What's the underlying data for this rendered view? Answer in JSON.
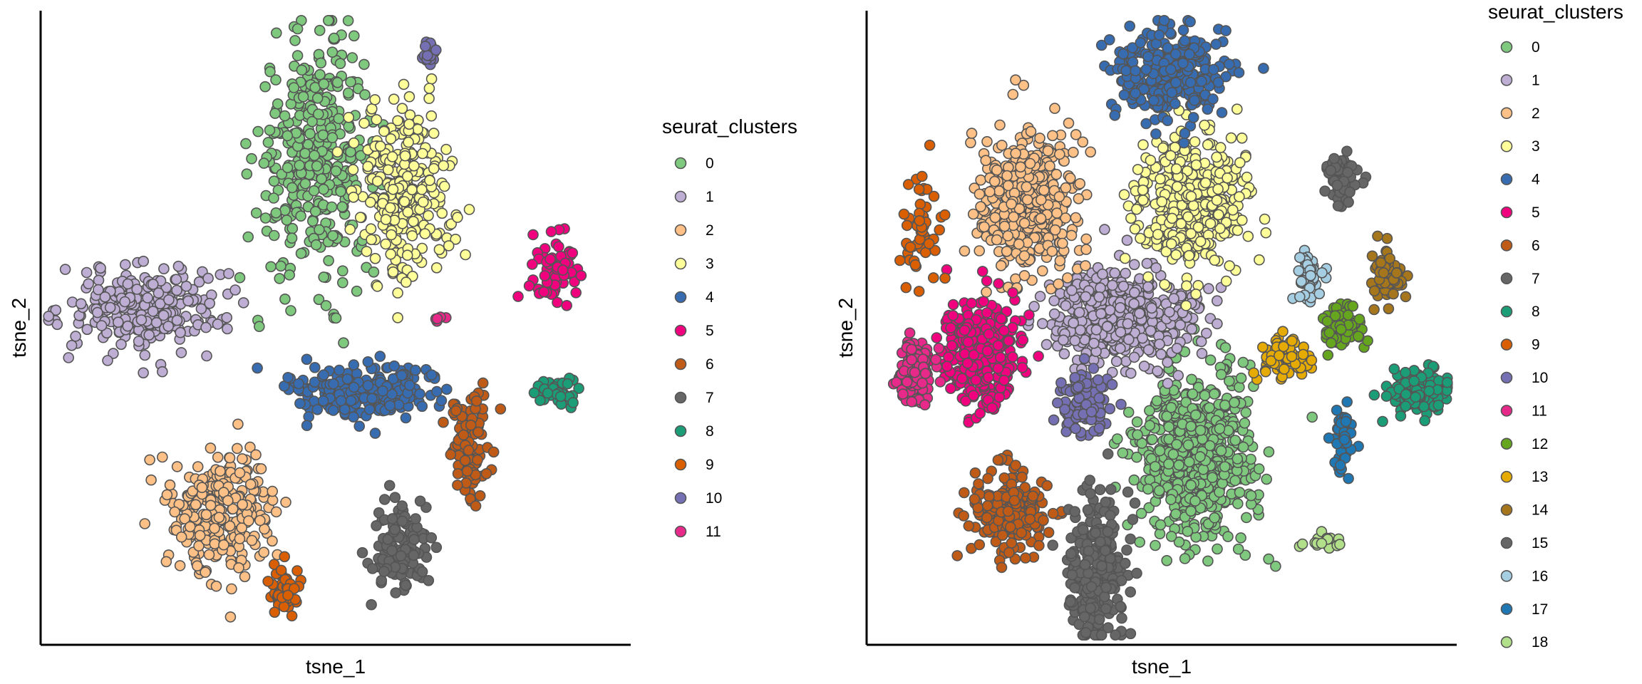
{
  "chart_data": [
    {
      "type": "scatter",
      "xlabel": "tsne_1",
      "ylabel": "tsne_2",
      "legend_title": "seurat_clusters",
      "legend_position": "right",
      "grid": false,
      "series": [
        {
          "name": "0",
          "color": "#7fc97f"
        },
        {
          "name": "1",
          "color": "#beaed4"
        },
        {
          "name": "2",
          "color": "#fdc086"
        },
        {
          "name": "3",
          "color": "#ffff99"
        },
        {
          "name": "4",
          "color": "#386cb0"
        },
        {
          "name": "5",
          "color": "#f0027f"
        },
        {
          "name": "6",
          "color": "#bf5b17"
        },
        {
          "name": "7",
          "color": "#666666"
        },
        {
          "name": "8",
          "color": "#1b9e77"
        },
        {
          "name": "9",
          "color": "#d95f02"
        },
        {
          "name": "10",
          "color": "#7570b3"
        },
        {
          "name": "11",
          "color": "#e7298a"
        }
      ],
      "clusters": [
        {
          "cluster": "0",
          "cx": 0.47,
          "cy": 0.77,
          "sx": 0.06,
          "sy": 0.11,
          "n": 380
        },
        {
          "cluster": "1",
          "cx": 0.17,
          "cy": 0.53,
          "sx": 0.08,
          "sy": 0.04,
          "n": 260
        },
        {
          "cluster": "2",
          "cx": 0.31,
          "cy": 0.21,
          "sx": 0.05,
          "sy": 0.06,
          "n": 260
        },
        {
          "cluster": "3",
          "cx": 0.62,
          "cy": 0.72,
          "sx": 0.05,
          "sy": 0.08,
          "n": 280
        },
        {
          "cluster": "4",
          "cx": 0.55,
          "cy": 0.4,
          "sx": 0.08,
          "sy": 0.025,
          "n": 220
        },
        {
          "cluster": "5",
          "cx": 0.88,
          "cy": 0.59,
          "sx": 0.025,
          "sy": 0.04,
          "n": 70
        },
        {
          "cluster": "6",
          "cx": 0.73,
          "cy": 0.31,
          "sx": 0.02,
          "sy": 0.05,
          "n": 110
        },
        {
          "cluster": "7",
          "cx": 0.61,
          "cy": 0.15,
          "sx": 0.03,
          "sy": 0.04,
          "n": 120
        },
        {
          "cluster": "8",
          "cx": 0.88,
          "cy": 0.4,
          "sx": 0.02,
          "sy": 0.012,
          "n": 40
        },
        {
          "cluster": "9",
          "cx": 0.41,
          "cy": 0.08,
          "sx": 0.015,
          "sy": 0.025,
          "n": 50
        },
        {
          "cluster": "10",
          "cx": 0.66,
          "cy": 0.94,
          "sx": 0.008,
          "sy": 0.012,
          "n": 25
        },
        {
          "cluster": "11",
          "cx": 0.68,
          "cy": 0.51,
          "sx": 0.006,
          "sy": 0.004,
          "n": 5
        }
      ]
    },
    {
      "type": "scatter",
      "xlabel": "tsne_1",
      "ylabel": "tsne_2",
      "legend_title": "seurat_clusters",
      "legend_position": "right",
      "grid": false,
      "series": [
        {
          "name": "0",
          "color": "#7fc97f"
        },
        {
          "name": "1",
          "color": "#beaed4"
        },
        {
          "name": "2",
          "color": "#fdc086"
        },
        {
          "name": "3",
          "color": "#ffff99"
        },
        {
          "name": "4",
          "color": "#386cb0"
        },
        {
          "name": "5",
          "color": "#f0027f"
        },
        {
          "name": "6",
          "color": "#bf5b17"
        },
        {
          "name": "7",
          "color": "#666666"
        },
        {
          "name": "8",
          "color": "#1b9e77"
        },
        {
          "name": "9",
          "color": "#d95f02"
        },
        {
          "name": "10",
          "color": "#7570b3"
        },
        {
          "name": "11",
          "color": "#e7298a"
        },
        {
          "name": "12",
          "color": "#66a61e"
        },
        {
          "name": "13",
          "color": "#e6ab02"
        },
        {
          "name": "14",
          "color": "#a6761d"
        },
        {
          "name": "15",
          "color": "#666666"
        },
        {
          "name": "16",
          "color": "#a6cee3"
        },
        {
          "name": "17",
          "color": "#1f78b4"
        },
        {
          "name": "18",
          "color": "#b2df8a"
        }
      ],
      "clusters": [
        {
          "cluster": "0",
          "cx": 0.56,
          "cy": 0.3,
          "sx": 0.06,
          "sy": 0.08,
          "n": 560
        },
        {
          "cluster": "1",
          "cx": 0.43,
          "cy": 0.52,
          "sx": 0.07,
          "sy": 0.045,
          "n": 460
        },
        {
          "cluster": "2",
          "cx": 0.27,
          "cy": 0.7,
          "sx": 0.05,
          "sy": 0.07,
          "n": 420
        },
        {
          "cluster": "3",
          "cx": 0.55,
          "cy": 0.7,
          "sx": 0.05,
          "sy": 0.06,
          "n": 440
        },
        {
          "cluster": "4",
          "cx": 0.52,
          "cy": 0.91,
          "sx": 0.05,
          "sy": 0.04,
          "n": 320
        },
        {
          "cluster": "5",
          "cx": 0.19,
          "cy": 0.46,
          "sx": 0.035,
          "sy": 0.05,
          "n": 320
        },
        {
          "cluster": "6",
          "cx": 0.24,
          "cy": 0.21,
          "sx": 0.04,
          "sy": 0.04,
          "n": 210
        },
        {
          "cluster": "7",
          "cx": 0.39,
          "cy": 0.11,
          "sx": 0.03,
          "sy": 0.07,
          "n": 260
        },
        {
          "cluster": "8",
          "cx": 0.94,
          "cy": 0.4,
          "sx": 0.03,
          "sy": 0.02,
          "n": 150
        },
        {
          "cluster": "9",
          "cx": 0.09,
          "cy": 0.66,
          "sx": 0.02,
          "sy": 0.05,
          "n": 55
        },
        {
          "cluster": "10",
          "cx": 0.37,
          "cy": 0.38,
          "sx": 0.025,
          "sy": 0.03,
          "n": 110
        },
        {
          "cluster": "11",
          "cx": 0.08,
          "cy": 0.43,
          "sx": 0.018,
          "sy": 0.03,
          "n": 130
        },
        {
          "cluster": "12",
          "cx": 0.81,
          "cy": 0.5,
          "sx": 0.02,
          "sy": 0.02,
          "n": 80
        },
        {
          "cluster": "13",
          "cx": 0.71,
          "cy": 0.45,
          "sx": 0.022,
          "sy": 0.018,
          "n": 80
        },
        {
          "cluster": "14",
          "cx": 0.89,
          "cy": 0.58,
          "sx": 0.015,
          "sy": 0.025,
          "n": 75
        },
        {
          "cluster": "15",
          "cx": 0.81,
          "cy": 0.74,
          "sx": 0.015,
          "sy": 0.02,
          "n": 70
        },
        {
          "cluster": "16",
          "cx": 0.75,
          "cy": 0.58,
          "sx": 0.012,
          "sy": 0.025,
          "n": 50
        },
        {
          "cluster": "17",
          "cx": 0.81,
          "cy": 0.32,
          "sx": 0.01,
          "sy": 0.03,
          "n": 50
        },
        {
          "cluster": "18",
          "cx": 0.78,
          "cy": 0.16,
          "sx": 0.02,
          "sy": 0.01,
          "n": 20
        }
      ]
    }
  ]
}
